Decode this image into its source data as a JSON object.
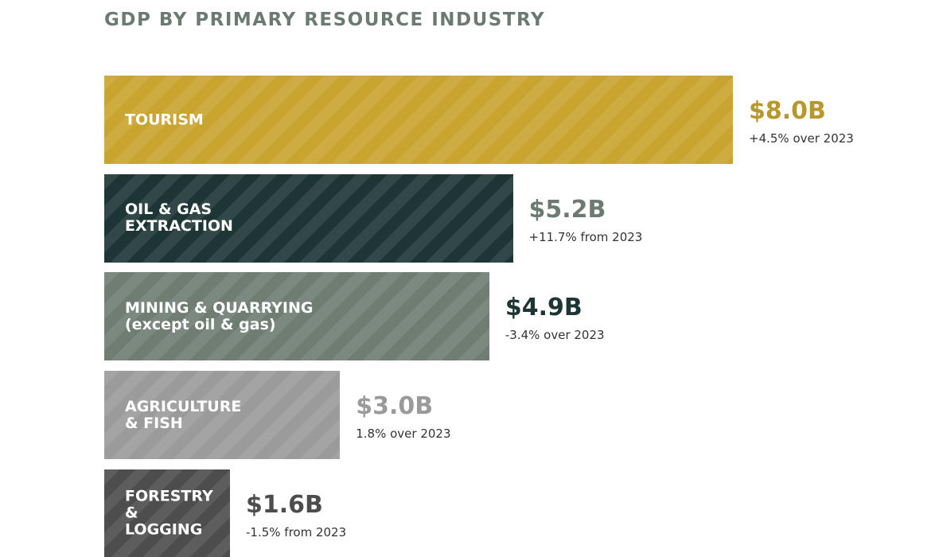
{
  "chart_data": {
    "type": "bar",
    "orientation": "horizontal",
    "title": "GDP BY PRIMARY RESOURCE INDUSTRY",
    "categories": [
      "TOURISM",
      "OIL & GAS\nEXTRACTION",
      "MINING & QUARRYING\n(except oil & gas)",
      "AGRICULTURE\n& FISH",
      "FORESTRY\n&\nLOGGING"
    ],
    "values": [
      8.0,
      5.2,
      4.9,
      3.0,
      1.6
    ],
    "value_labels": [
      "$8.0B",
      "$5.2B",
      "$4.9B",
      "$3.0B",
      "$1.6B"
    ],
    "notes": [
      "+4.5% over 2023",
      "+11.7% from 2023",
      "-3.4% over 2023",
      "1.8% over 2023",
      "-1.5% from 2023"
    ],
    "colors": [
      "#c9a42e",
      "#1e3536",
      "#6f7d73",
      "#9b9b9b",
      "#4d4d4d"
    ],
    "label_colors": [
      "#b8982a",
      "#6b7b72",
      "#1e3536",
      "#9a9a9a",
      "#4d4d4d"
    ]
  }
}
